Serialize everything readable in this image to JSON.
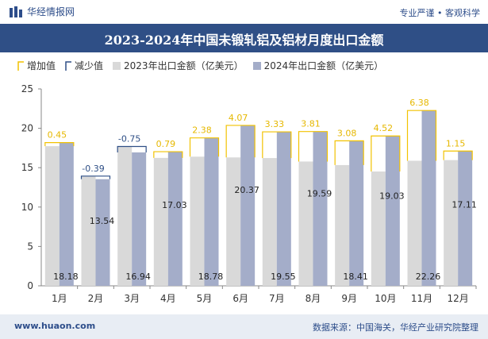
{
  "header": {
    "brand": "华经情报网",
    "slogan": "专业严谨 • 客观科学"
  },
  "footer": {
    "url": "www.huaon.com",
    "source": "数据来源：中国海关，华经产业研究院整理"
  },
  "colors": {
    "title_bg": "#2f4f86",
    "series_2023": "#d9d9d9",
    "series_2024": "#a4adc9",
    "increase": "#f2c200",
    "decrease": "#2f4f86",
    "increase_label": "#e6b800",
    "decrease_label": "#2f4f86"
  },
  "chart_data": {
    "type": "bar",
    "title": "2023-2024年中国未锻轧铝及铝材月度出口金额",
    "categories": [
      "1月",
      "2月",
      "3月",
      "4月",
      "5月",
      "6月",
      "7月",
      "8月",
      "9月",
      "10月",
      "11月",
      "12月"
    ],
    "series": [
      {
        "name": "2023年出口金额（亿美元）",
        "values": [
          17.73,
          13.93,
          17.69,
          16.24,
          16.4,
          16.3,
          16.22,
          15.78,
          15.33,
          14.51,
          15.88,
          15.96
        ]
      },
      {
        "name": "2024年出口金额（亿美元）",
        "values": [
          18.18,
          13.54,
          16.94,
          17.03,
          18.78,
          20.37,
          19.55,
          19.59,
          18.41,
          19.03,
          22.26,
          17.11
        ]
      }
    ],
    "change": [
      0.45,
      -0.39,
      -0.75,
      0.79,
      2.38,
      4.07,
      3.33,
      3.81,
      3.08,
      4.52,
      6.38,
      1.15
    ],
    "legend": [
      "增加值",
      "减少值",
      "2023年出口金额（亿美元）",
      "2024年出口金额（亿美元）"
    ],
    "ylim": [
      0,
      25
    ],
    "yticks": [
      0,
      5,
      10,
      15,
      20,
      25
    ],
    "grid": false,
    "legend_position": "top-left"
  }
}
